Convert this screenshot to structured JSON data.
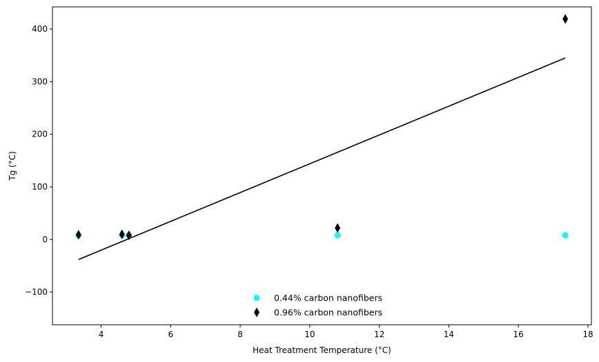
{
  "chart_data": {
    "type": "scatter",
    "title": "",
    "xlabel": "Heat Treatment Temperature (°C)",
    "ylabel": "Tg (°C)",
    "xlim": [
      2.6,
      18.1
    ],
    "ylim": [
      -162,
      442
    ],
    "grid": false,
    "legend_position": "bottom-center",
    "x_ticks": [
      4,
      6,
      8,
      10,
      12,
      14,
      16,
      18
    ],
    "x_tick_labels": [
      "4",
      "6",
      "8",
      "10",
      "12",
      "14",
      "16",
      "18"
    ],
    "y_ticks": [
      -100,
      0,
      100,
      200,
      300,
      400
    ],
    "y_tick_labels": [
      "−100",
      "0",
      "100",
      "200",
      "300",
      "400"
    ],
    "series": [
      {
        "name": "0.44% carbon nanofibers",
        "marker": "circle",
        "color": "#00ffff",
        "points": [
          {
            "x": 3.35,
            "y": 8
          },
          {
            "x": 4.6,
            "y": 8
          },
          {
            "x": 4.8,
            "y": 8
          },
          {
            "x": 10.8,
            "y": 8
          },
          {
            "x": 17.35,
            "y": 8
          }
        ]
      },
      {
        "name": "0.96% carbon nanofibers",
        "marker": "diamond",
        "color": "#000000",
        "points": [
          {
            "x": 3.35,
            "y": 9
          },
          {
            "x": 4.6,
            "y": 10
          },
          {
            "x": 4.8,
            "y": 8
          },
          {
            "x": 10.8,
            "y": 22
          },
          {
            "x": 17.35,
            "y": 419
          }
        ]
      }
    ],
    "fit_line": {
      "color": "#000000",
      "points": [
        {
          "x": 3.35,
          "y": -38
        },
        {
          "x": 17.35,
          "y": 345
        }
      ]
    }
  }
}
